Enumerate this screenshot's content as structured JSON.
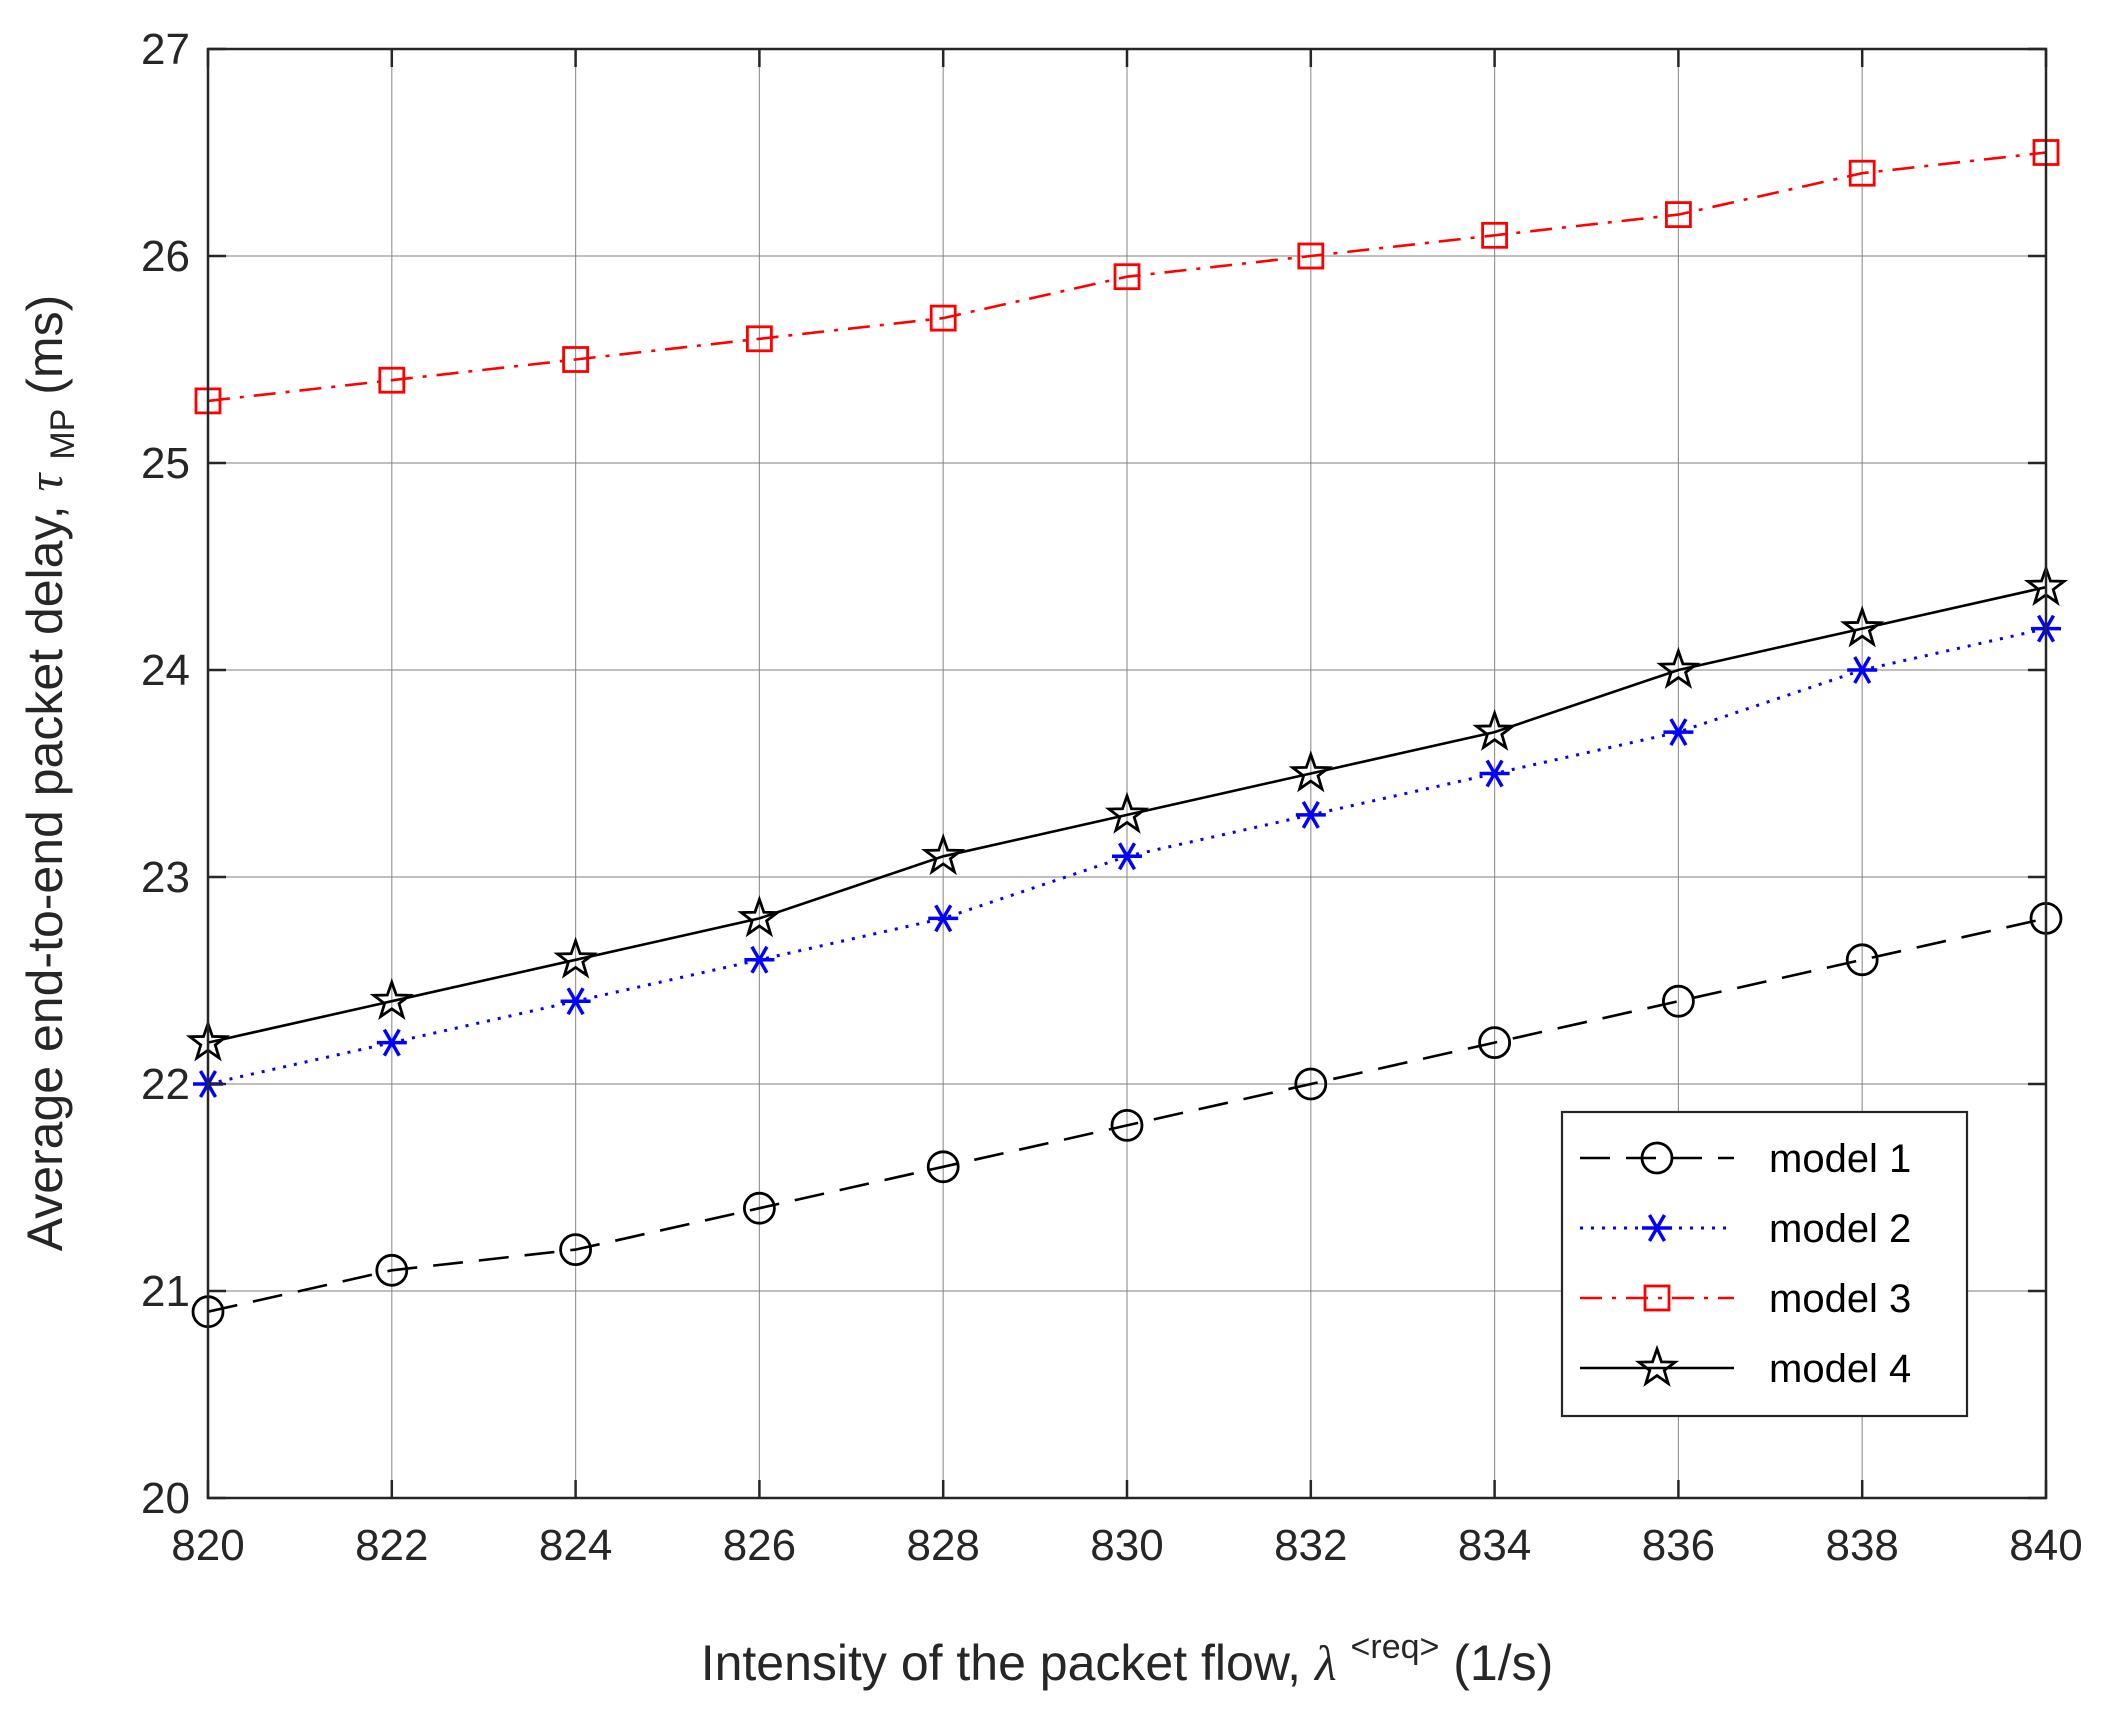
{
  "chart_data": {
    "type": "line",
    "title": "",
    "xlabel": {
      "prefix": "Intensity of the packet flow, ",
      "symbol": "λ",
      "superscript": "<req>",
      "suffix": " (1/s)"
    },
    "ylabel": {
      "prefix": "Average end-to-end packet delay, ",
      "symbol": "τ",
      "subscript": "MP",
      "suffix": " (ms)"
    },
    "x": [
      820,
      822,
      824,
      826,
      828,
      830,
      832,
      834,
      836,
      838,
      840
    ],
    "xlim": [
      820,
      840
    ],
    "ylim": [
      20,
      27
    ],
    "xticks": [
      "820",
      "822",
      "824",
      "826",
      "828",
      "830",
      "832",
      "834",
      "836",
      "838",
      "840"
    ],
    "yticks": [
      "20",
      "21",
      "22",
      "23",
      "24",
      "25",
      "26",
      "27"
    ],
    "legend_position": "lower-right",
    "series": [
      {
        "name": "model 1",
        "color": "#000000",
        "line": "dashed",
        "marker": "circle",
        "values": [
          20.9,
          21.1,
          21.2,
          21.4,
          21.6,
          21.8,
          22.0,
          22.2,
          22.4,
          22.6,
          22.8
        ]
      },
      {
        "name": "model 2",
        "color": "#0000ff",
        "line": "dotted",
        "marker": "asterisk",
        "values": [
          22.0,
          22.2,
          22.4,
          22.6,
          22.8,
          23.1,
          23.3,
          23.5,
          23.7,
          24.0,
          24.2
        ]
      },
      {
        "name": "model 3",
        "color": "#ff0000",
        "line": "dashdot",
        "marker": "square",
        "values": [
          25.3,
          25.4,
          25.5,
          25.6,
          25.7,
          25.9,
          26.0,
          26.1,
          26.2,
          26.4,
          26.5
        ]
      },
      {
        "name": "model 4",
        "color": "#000000",
        "line": "solid",
        "marker": "star",
        "values": [
          22.2,
          22.4,
          22.6,
          22.8,
          23.1,
          23.3,
          23.5,
          23.7,
          24.0,
          24.2,
          24.4
        ]
      }
    ]
  }
}
